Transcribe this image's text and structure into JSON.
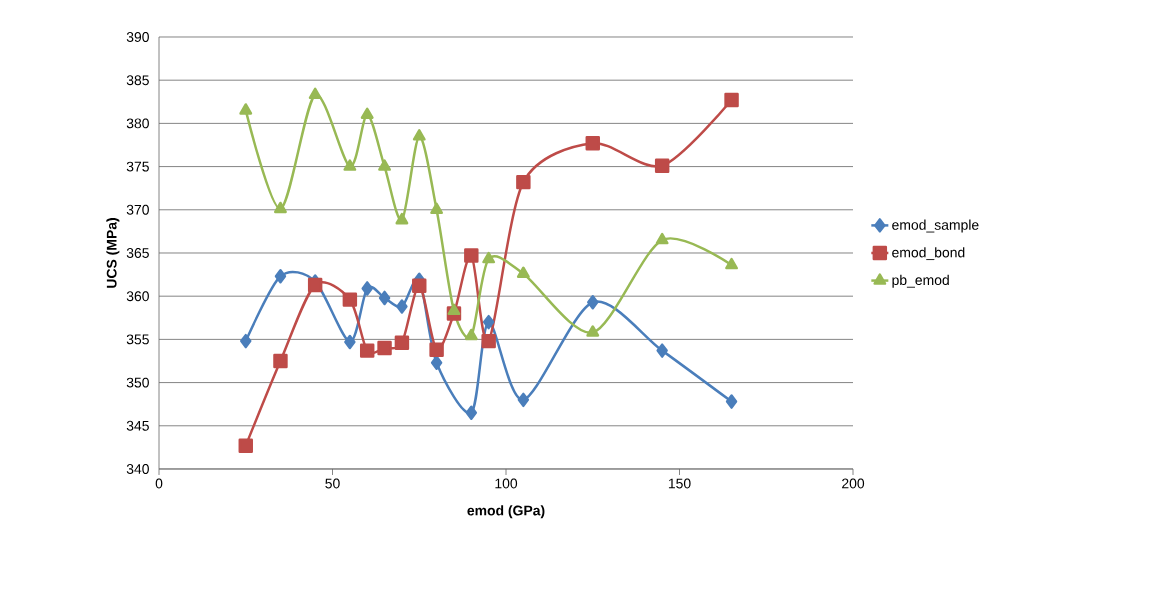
{
  "chart_data": {
    "type": "line",
    "xlabel": "emod (GPa)",
    "ylabel": "UCS (MPa)",
    "x": [
      25,
      35,
      45,
      55,
      60,
      65,
      70,
      75,
      80,
      85,
      90,
      95,
      105,
      125,
      145,
      165
    ],
    "series": [
      {
        "name": "emod_sample",
        "color": "#4a7ebb",
        "marker": "diamond",
        "values": [
          354.8,
          362.3,
          361.7,
          354.7,
          360.9,
          359.8,
          358.8,
          361.9,
          352.3,
          null,
          346.5,
          357,
          348,
          359.3,
          353.7,
          347.8
        ]
      },
      {
        "name": "emod_bond",
        "color": "#be4b48",
        "marker": "square",
        "values": [
          342.7,
          352.5,
          361.3,
          359.6,
          353.7,
          354,
          354.6,
          361.2,
          353.8,
          358,
          364.7,
          354.8,
          373.2,
          377.7,
          375.1,
          382.7
        ]
      },
      {
        "name": "pb_emod",
        "color": "#98b954",
        "marker": "triangle",
        "values": [
          381.5,
          370.1,
          383.3,
          375,
          381,
          375,
          368.8,
          378.5,
          370,
          358.3,
          355.4,
          364.3,
          362.6,
          355.8,
          366.5,
          363.6
        ]
      }
    ],
    "xlim": [
      0,
      200
    ],
    "xticks": [
      0,
      50,
      100,
      150,
      200
    ],
    "ylim": [
      340,
      390
    ],
    "yticks": [
      340,
      345,
      350,
      355,
      360,
      365,
      370,
      375,
      380,
      385,
      390
    ],
    "grid": "y",
    "legend": "right",
    "line_style": "solid"
  }
}
